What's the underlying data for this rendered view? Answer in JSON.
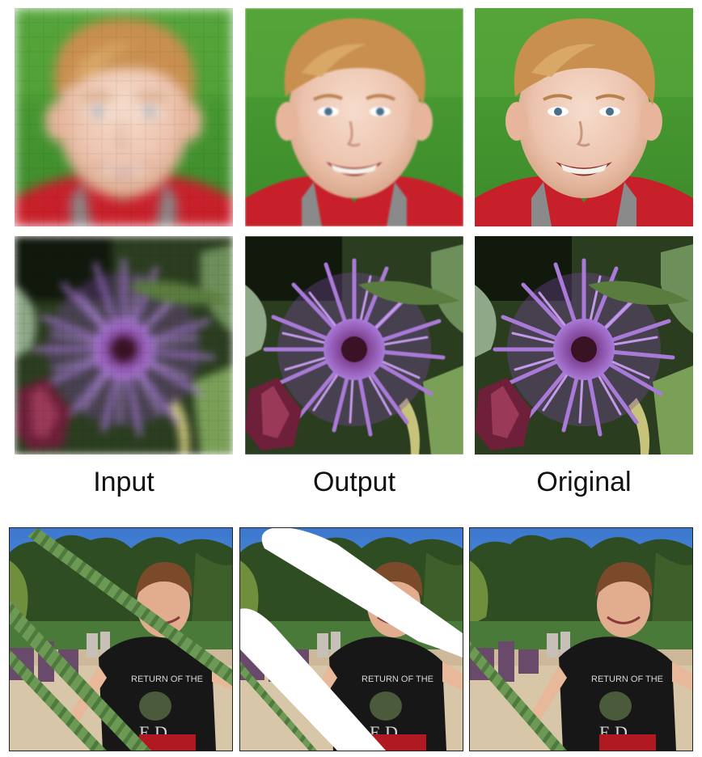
{
  "captions": {
    "input": "Input",
    "output": "Output",
    "original": "Original"
  },
  "panels": {
    "row1": [
      "input-face-pixelated",
      "output-face",
      "original-face"
    ],
    "row2": [
      "input-flower-pixelated",
      "output-flower",
      "original-flower"
    ],
    "row3": [
      "input-boy-with-rope",
      "output-boy-inpaint-mask",
      "original-boy"
    ]
  },
  "colors": {
    "grass": "#4c9a34",
    "shirt_red": "#c8202b",
    "skin": "#f0c9b4",
    "hair": "#c98f4f",
    "flower_purple": "#8a55b8",
    "sky_blue": "#3f7fd0",
    "mask_white": "#ffffff"
  }
}
